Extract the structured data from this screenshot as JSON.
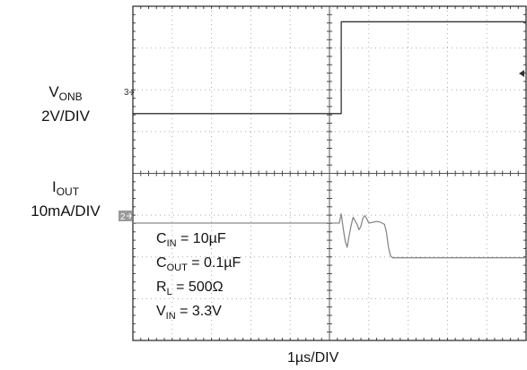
{
  "chart_data": {
    "type": "line",
    "xlabel": "1µs/DIV",
    "grid": true,
    "x_divisions": 10,
    "y_divisions": 8,
    "series": [
      {
        "name": "VONB",
        "scale": "2V/DIV",
        "marker": "3",
        "color": "#333333",
        "x": [
          0,
          5.3,
          5.3,
          10
        ],
        "y": [
          0,
          0,
          2.2,
          2.2
        ]
      },
      {
        "name": "IOUT",
        "scale": "10mA/DIV",
        "marker": "2",
        "color": "#8a8a8a",
        "x": [
          0,
          5.25,
          5.3,
          5.35,
          5.4,
          5.45,
          5.5,
          5.55,
          5.6,
          5.7,
          5.75,
          5.8,
          5.85,
          5.9,
          5.95,
          6.0,
          6.1,
          6.2,
          6.3,
          6.4,
          6.45,
          6.5,
          6.55,
          6.6,
          7.0,
          8.0,
          9.0,
          10.0
        ],
        "y": [
          1.08,
          1.08,
          1.3,
          0.95,
          0.65,
          0.5,
          0.78,
          1.02,
          1.22,
          1.05,
          0.92,
          1.0,
          1.2,
          1.26,
          1.18,
          1.08,
          1.1,
          1.12,
          1.1,
          1.05,
          0.85,
          0.5,
          0.3,
          0.25,
          0.25,
          0.25,
          0.25,
          0.25
        ]
      }
    ]
  },
  "labels": {
    "vonb_sym": "V",
    "vonb_sub": "ONB",
    "vonb_scale": "2V/DIV",
    "iout_sym": "I",
    "iout_sub": "OUT",
    "iout_scale": "10mA/DIV",
    "ch3_marker": "3",
    "ch2_marker": "2"
  },
  "conditions": {
    "cin_sym": "C",
    "cin_sub": "IN",
    "cin_val": " = 10µF",
    "cout_sym": "C",
    "cout_sub": "OUT",
    "cout_val": " = 0.1µF",
    "rl_sym": "R",
    "rl_sub": "L",
    "rl_val": " = 500Ω",
    "vin_sym": "V",
    "vin_sub": "IN",
    "vin_val": " = 3.3V"
  }
}
